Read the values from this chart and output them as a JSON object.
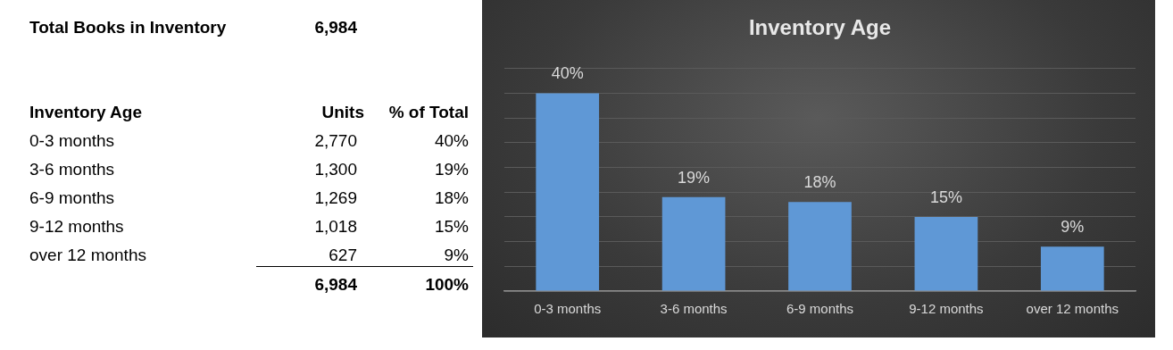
{
  "chart_data": [
    {
      "type": "other",
      "title": "Total Books in Inventory",
      "annotations": [
        "6,984"
      ],
      "xlabel": "Inventory Age",
      "categories": [
        "0-3 months",
        "3-6 months",
        "6-9 months",
        "9-12 months",
        "over 12 months"
      ],
      "series": [
        {
          "name": "Units",
          "values": [
            2770,
            1300,
            1269,
            1018,
            627
          ],
          "value_labels": [
            "2,770",
            "1,300",
            "1,269",
            "1,018",
            "627"
          ]
        },
        {
          "name": "% of Total",
          "values": [
            40,
            19,
            18,
            15,
            9
          ],
          "value_labels": [
            "40%",
            "19%",
            "18%",
            "15%",
            "9%"
          ]
        }
      ],
      "totals": [
        "6,984",
        "100%"
      ]
    },
    {
      "type": "bar",
      "title": "Inventory Age",
      "categories": [
        "0-3 months",
        "3-6 months",
        "6-9 months",
        "9-12 months",
        "over 12 months"
      ],
      "values": [
        40,
        19,
        18,
        15,
        9
      ],
      "value_labels": [
        "40%",
        "19%",
        "18%",
        "15%",
        "9%"
      ],
      "color": "#5f98d6",
      "ylim": [
        0,
        45
      ],
      "yticks": [
        {
          "value": 0,
          "label": null
        },
        {
          "value": 5,
          "label": null
        },
        {
          "value": 10,
          "label": null
        },
        {
          "value": 15,
          "label": null
        },
        {
          "value": 20,
          "label": null
        },
        {
          "value": 25,
          "label": null
        },
        {
          "value": 30,
          "label": null
        },
        {
          "value": 35,
          "label": null
        },
        {
          "value": 40,
          "label": null
        },
        {
          "value": 45,
          "label": null
        }
      ],
      "grid": "y",
      "tick_labels": "x",
      "legend": false
    }
  ]
}
